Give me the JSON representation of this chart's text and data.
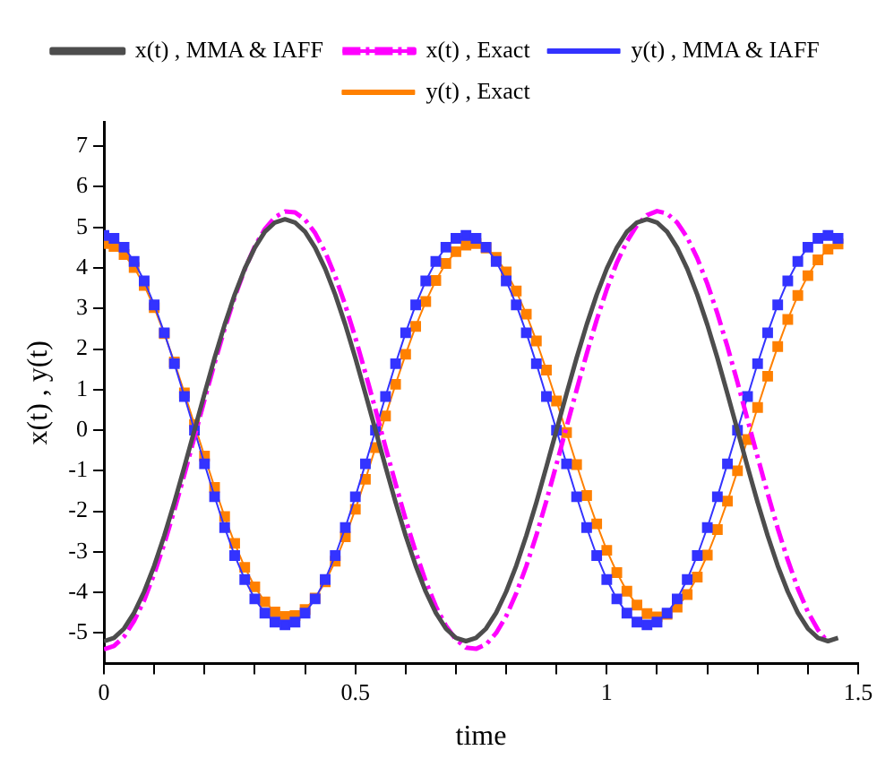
{
  "chart_data": {
    "type": "line",
    "xlabel": "time",
    "ylabel": "x(t) , y(t)",
    "x": [
      0,
      0.02,
      0.04,
      0.06,
      0.08,
      0.1,
      0.12,
      0.14,
      0.16,
      0.18,
      0.2,
      0.22,
      0.24,
      0.26,
      0.28,
      0.3,
      0.32,
      0.34,
      0.36,
      0.38,
      0.4,
      0.42,
      0.44,
      0.46,
      0.48,
      0.5,
      0.52,
      0.54,
      0.56,
      0.58,
      0.6,
      0.62,
      0.64,
      0.66,
      0.68,
      0.7,
      0.72,
      0.74,
      0.76,
      0.78,
      0.8,
      0.82,
      0.84,
      0.86,
      0.88,
      0.9,
      0.92,
      0.94,
      0.96,
      0.98,
      1,
      1.02,
      1.04,
      1.06,
      1.08,
      1.1,
      1.12,
      1.14,
      1.16,
      1.18,
      1.2,
      1.22,
      1.24,
      1.26,
      1.28,
      1.3,
      1.32,
      1.34,
      1.36,
      1.38,
      1.4,
      1.42,
      1.44,
      1.46
    ],
    "series": [
      {
        "name": "x(t) , MMA & IAFF",
        "color": "#4d4d4d",
        "marker": "none",
        "line_style": "solid",
        "values": [
          -5.2,
          -5.12,
          -4.89,
          -4.5,
          -3.98,
          -3.34,
          -2.6,
          -1.78,
          -0.9,
          0,
          0.9,
          1.78,
          2.6,
          3.34,
          3.98,
          4.5,
          4.89,
          5.12,
          5.2,
          5.12,
          4.89,
          4.5,
          3.98,
          3.34,
          2.6,
          1.78,
          0.9,
          0,
          -0.9,
          -1.78,
          -2.6,
          -3.34,
          -3.98,
          -4.5,
          -4.89,
          -5.12,
          -5.2,
          -5.12,
          -4.89,
          -4.5,
          -3.98,
          -3.34,
          -2.6,
          -1.78,
          -0.9,
          0,
          0.9,
          1.78,
          2.6,
          3.34,
          3.98,
          4.5,
          4.89,
          5.12,
          5.2,
          5.12,
          4.89,
          4.5,
          3.98,
          3.34,
          2.6,
          1.78,
          0.9,
          0,
          -0.9,
          -1.78,
          -2.6,
          -3.34,
          -3.98,
          -4.5,
          -4.89,
          -5.12,
          -5.2,
          -5.12
        ]
      },
      {
        "name": "x(t) , Exact",
        "color": "#ff00ff",
        "marker": "none",
        "line_style": "dashed",
        "values": [
          -5.4,
          -5.32,
          -5.09,
          -4.7,
          -4.19,
          -3.54,
          -2.8,
          -1.97,
          -1.09,
          -0.17,
          0.75,
          1.65,
          2.5,
          3.28,
          3.96,
          4.53,
          4.96,
          5.25,
          5.39,
          5.37,
          5.19,
          4.86,
          4.39,
          3.79,
          3.08,
          2.28,
          1.41,
          0.51,
          -0.42,
          -1.32,
          -2.2,
          -3.0,
          -3.73,
          -4.34,
          -4.82,
          -5.16,
          -5.36,
          -5.39,
          -5.28,
          -5.0,
          -4.58,
          -4.02,
          -3.35,
          -2.59,
          -1.74,
          -0.84,
          0.08,
          0.99,
          1.88,
          2.72,
          3.47,
          4.13,
          4.65,
          5.05,
          5.3,
          5.4,
          5.34,
          5.12,
          4.75,
          4.24,
          3.61,
          2.88,
          2.06,
          1.18,
          0.26,
          -0.66,
          -1.56,
          -2.42,
          -3.2,
          -3.9,
          -4.48,
          -4.92,
          -5.23,
          null
        ]
      },
      {
        "name": "y(t) , MMA & IAFF",
        "color": "#3333ff",
        "marker": "square",
        "line_style": "solid",
        "values": [
          4.8,
          4.73,
          4.51,
          4.16,
          3.68,
          3.09,
          2.4,
          1.64,
          0.83,
          0,
          -0.83,
          -1.64,
          -2.4,
          -3.09,
          -3.68,
          -4.16,
          -4.51,
          -4.73,
          -4.8,
          -4.73,
          -4.51,
          -4.16,
          -3.68,
          -3.09,
          -2.4,
          -1.64,
          -0.83,
          0,
          0.83,
          1.64,
          2.4,
          3.09,
          3.68,
          4.16,
          4.51,
          4.73,
          4.8,
          4.73,
          4.51,
          4.16,
          3.68,
          3.09,
          2.4,
          1.64,
          0.83,
          0,
          -0.83,
          -1.64,
          -2.4,
          -3.09,
          -3.68,
          -4.16,
          -4.51,
          -4.73,
          -4.8,
          -4.73,
          -4.51,
          -4.16,
          -3.68,
          -3.09,
          -2.4,
          -1.64,
          -0.83,
          0,
          0.83,
          1.64,
          2.4,
          3.09,
          3.68,
          4.16,
          4.51,
          4.73,
          4.8,
          4.73
        ]
      },
      {
        "name": "y(t) , Exact",
        "color": "#ff8000",
        "marker": "square",
        "line_style": "solid",
        "values": [
          4.6,
          4.53,
          4.33,
          4.01,
          3.57,
          3.02,
          2.38,
          1.68,
          0.92,
          0.14,
          -0.64,
          -1.41,
          -2.13,
          -2.79,
          -3.38,
          -3.86,
          -4.23,
          -4.48,
          -4.59,
          -4.57,
          -4.42,
          -4.14,
          -3.74,
          -3.23,
          -2.63,
          -1.95,
          -1.21,
          -0.43,
          0.35,
          1.13,
          1.87,
          2.56,
          3.17,
          3.69,
          4.11,
          4.4,
          4.56,
          4.6,
          4.49,
          4.26,
          3.9,
          3.43,
          2.86,
          2.2,
          1.48,
          0.72,
          -0.06,
          -0.85,
          -1.61,
          -2.31,
          -2.96,
          -3.51,
          -3.97,
          -4.31,
          -4.52,
          -4.6,
          -4.54,
          -4.36,
          -4.05,
          -3.62,
          -3.08,
          -2.45,
          -1.75,
          -1.0,
          -0.23,
          0.56,
          1.33,
          2.06,
          2.73,
          3.32,
          3.81,
          4.2,
          4.46,
          4.59
        ]
      }
    ],
    "xlim": [
      0,
      1.5
    ],
    "xticks": [
      0,
      {
        "value": 0.1,
        "label": null
      },
      {
        "value": 0.2,
        "label": null
      },
      {
        "value": 0.3,
        "label": null
      },
      {
        "value": 0.4,
        "label": null
      },
      0.5,
      {
        "value": 0.6,
        "label": null
      },
      {
        "value": 0.7,
        "label": null
      },
      {
        "value": 0.8,
        "label": null
      },
      {
        "value": 0.9,
        "label": null
      },
      1,
      {
        "value": 1.1,
        "label": null
      },
      {
        "value": 1.2,
        "label": null
      },
      {
        "value": 1.3,
        "label": null
      },
      {
        "value": 1.4,
        "label": null
      },
      1.5
    ],
    "ylim": [
      -5.75,
      7.6
    ],
    "yticks": [
      -5,
      -4,
      -3,
      -2,
      -1,
      0,
      1,
      2,
      3,
      4,
      5,
      6,
      7
    ],
    "grid": false,
    "legend": "top"
  }
}
